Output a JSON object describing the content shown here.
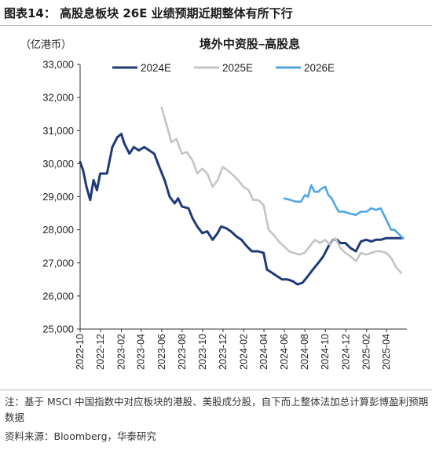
{
  "figure": {
    "title": "图表14：  高股息板块 26E 业绩预期近期整体有所下行",
    "note": "注：基于 MSCI 中国指数中对应板块的港股、美股成分股，自下而上整体法加总计算彭博盈利预期数据",
    "source": "资料来源：Bloomberg，华泰研究"
  },
  "chart_data": {
    "type": "line",
    "title": "境外中资股–高股息",
    "unit_label": "（亿港币）",
    "ylim": [
      25000,
      33000
    ],
    "yticks": [
      "25,000",
      "26,000",
      "27,000",
      "28,000",
      "29,000",
      "30,000",
      "31,000",
      "32,000",
      "33,000"
    ],
    "xlim": [
      "2022-10-01",
      "2025-06-01"
    ],
    "xticks": [
      "2022-10",
      "2022-12",
      "2023-02",
      "2023-04",
      "2023-06",
      "2023-08",
      "2023-10",
      "2023-12",
      "2024-02",
      "2024-04",
      "2024-06",
      "2024-08",
      "2024-10",
      "2024-12",
      "2025-02",
      "2025-04"
    ],
    "legend_position": "top",
    "series": [
      {
        "name": "2024E",
        "color": "#1f3a7a",
        "points": [
          [
            "2022-10-01",
            30050
          ],
          [
            "2022-10-10",
            29800
          ],
          [
            "2022-10-20",
            29300
          ],
          [
            "2022-10-31",
            28900
          ],
          [
            "2022-11-10",
            29500
          ],
          [
            "2022-11-20",
            29200
          ],
          [
            "2022-11-30",
            29700
          ],
          [
            "2022-12-20",
            29700
          ],
          [
            "2023-01-05",
            30500
          ],
          [
            "2023-01-20",
            30800
          ],
          [
            "2023-02-01",
            30900
          ],
          [
            "2023-02-10",
            30600
          ],
          [
            "2023-02-25",
            30300
          ],
          [
            "2023-03-10",
            30500
          ],
          [
            "2023-03-25",
            30400
          ],
          [
            "2023-04-10",
            30500
          ],
          [
            "2023-04-25",
            30400
          ],
          [
            "2023-05-10",
            30300
          ],
          [
            "2023-05-25",
            29900
          ],
          [
            "2023-06-10",
            29500
          ],
          [
            "2023-06-25",
            29000
          ],
          [
            "2023-07-10",
            28800
          ],
          [
            "2023-07-20",
            28950
          ],
          [
            "2023-08-01",
            28700
          ],
          [
            "2023-08-20",
            28650
          ],
          [
            "2023-09-01",
            28350
          ],
          [
            "2023-09-15",
            28100
          ],
          [
            "2023-09-30",
            27900
          ],
          [
            "2023-10-15",
            27950
          ],
          [
            "2023-10-31",
            27700
          ],
          [
            "2023-11-15",
            27900
          ],
          [
            "2023-11-25",
            28100
          ],
          [
            "2023-12-10",
            28050
          ],
          [
            "2023-12-25",
            27950
          ],
          [
            "2024-01-10",
            27800
          ],
          [
            "2024-01-25",
            27700
          ],
          [
            "2024-02-10",
            27500
          ],
          [
            "2024-02-25",
            27350
          ],
          [
            "2024-03-15",
            27350
          ],
          [
            "2024-03-31",
            27300
          ],
          [
            "2024-04-10",
            26800
          ],
          [
            "2024-04-25",
            26700
          ],
          [
            "2024-05-10",
            26600
          ],
          [
            "2024-05-25",
            26500
          ],
          [
            "2024-06-10",
            26500
          ],
          [
            "2024-06-25",
            26450
          ],
          [
            "2024-07-10",
            26350
          ],
          [
            "2024-07-25",
            26400
          ],
          [
            "2024-08-10",
            26600
          ],
          [
            "2024-08-25",
            26800
          ],
          [
            "2024-09-10",
            27000
          ],
          [
            "2024-09-25",
            27200
          ],
          [
            "2024-10-10",
            27500
          ],
          [
            "2024-10-25",
            27700
          ],
          [
            "2024-11-05",
            27700
          ],
          [
            "2024-11-15",
            27600
          ],
          [
            "2024-11-30",
            27600
          ],
          [
            "2024-12-15",
            27450
          ],
          [
            "2024-12-31",
            27350
          ],
          [
            "2025-01-15",
            27650
          ],
          [
            "2025-01-31",
            27700
          ],
          [
            "2025-02-15",
            27650
          ],
          [
            "2025-03-01",
            27700
          ],
          [
            "2025-03-15",
            27700
          ],
          [
            "2025-04-01",
            27750
          ],
          [
            "2025-04-15",
            27750
          ],
          [
            "2025-05-01",
            27750
          ],
          [
            "2025-05-20",
            27750
          ]
        ]
      },
      {
        "name": "2025E",
        "color": "#c4c4c4",
        "points": [
          [
            "2023-06-01",
            31700
          ],
          [
            "2023-06-15",
            31200
          ],
          [
            "2023-06-30",
            30650
          ],
          [
            "2023-07-15",
            30750
          ],
          [
            "2023-07-31",
            30300
          ],
          [
            "2023-08-15",
            30350
          ],
          [
            "2023-09-01",
            30100
          ],
          [
            "2023-09-15",
            29700
          ],
          [
            "2023-09-30",
            29850
          ],
          [
            "2023-10-15",
            29700
          ],
          [
            "2023-10-31",
            29300
          ],
          [
            "2023-11-15",
            29500
          ],
          [
            "2023-11-30",
            29900
          ],
          [
            "2023-12-15",
            29800
          ],
          [
            "2023-12-31",
            29650
          ],
          [
            "2024-01-15",
            29500
          ],
          [
            "2024-01-31",
            29300
          ],
          [
            "2024-02-15",
            29200
          ],
          [
            "2024-02-29",
            28900
          ],
          [
            "2024-03-15",
            28900
          ],
          [
            "2024-03-31",
            28750
          ],
          [
            "2024-04-15",
            28000
          ],
          [
            "2024-04-30",
            27850
          ],
          [
            "2024-05-15",
            27650
          ],
          [
            "2024-05-31",
            27500
          ],
          [
            "2024-06-15",
            27350
          ],
          [
            "2024-06-30",
            27300
          ],
          [
            "2024-07-15",
            27250
          ],
          [
            "2024-07-31",
            27300
          ],
          [
            "2024-08-15",
            27500
          ],
          [
            "2024-08-31",
            27700
          ],
          [
            "2024-09-15",
            27600
          ],
          [
            "2024-09-30",
            27700
          ],
          [
            "2024-10-15",
            27550
          ],
          [
            "2024-10-31",
            27750
          ],
          [
            "2024-11-15",
            27450
          ],
          [
            "2024-11-30",
            27300
          ],
          [
            "2024-12-15",
            27200
          ],
          [
            "2024-12-31",
            27050
          ],
          [
            "2025-01-15",
            27300
          ],
          [
            "2025-01-31",
            27250
          ],
          [
            "2025-02-15",
            27300
          ],
          [
            "2025-03-01",
            27350
          ],
          [
            "2025-03-15",
            27350
          ],
          [
            "2025-04-01",
            27300
          ],
          [
            "2025-04-15",
            27150
          ],
          [
            "2025-05-01",
            26850
          ],
          [
            "2025-05-15",
            26700
          ]
        ]
      },
      {
        "name": "2026E",
        "color": "#4da6e6",
        "points": [
          [
            "2024-06-01",
            28950
          ],
          [
            "2024-06-20",
            28900
          ],
          [
            "2024-07-05",
            28850
          ],
          [
            "2024-07-20",
            28850
          ],
          [
            "2024-08-01",
            29050
          ],
          [
            "2024-08-10",
            29000
          ],
          [
            "2024-08-20",
            29350
          ],
          [
            "2024-08-30",
            29150
          ],
          [
            "2024-09-10",
            29150
          ],
          [
            "2024-09-20",
            29250
          ],
          [
            "2024-10-01",
            29300
          ],
          [
            "2024-10-10",
            29050
          ],
          [
            "2024-10-20",
            28950
          ],
          [
            "2024-11-01",
            28700
          ],
          [
            "2024-11-10",
            28550
          ],
          [
            "2024-11-25",
            28550
          ],
          [
            "2024-12-10",
            28500
          ],
          [
            "2024-12-31",
            28450
          ],
          [
            "2025-01-15",
            28550
          ],
          [
            "2025-02-01",
            28550
          ],
          [
            "2025-02-15",
            28650
          ],
          [
            "2025-03-01",
            28600
          ],
          [
            "2025-03-15",
            28650
          ],
          [
            "2025-04-01",
            28300
          ],
          [
            "2025-04-15",
            28000
          ],
          [
            "2025-04-25",
            28000
          ],
          [
            "2025-05-05",
            27900
          ],
          [
            "2025-05-20",
            27750
          ]
        ]
      }
    ]
  }
}
